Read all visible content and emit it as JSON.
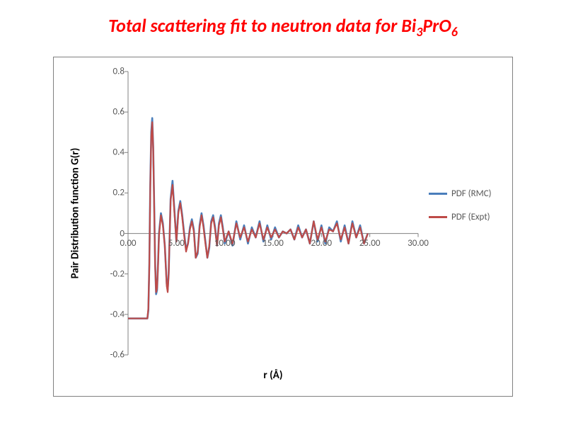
{
  "title_parts": {
    "p1": "Total scattering fit to neutron data for Bi",
    "sub1": "3",
    "p2": "PrO",
    "sub2": "6"
  },
  "chart": {
    "type": "line",
    "x_label": "r (Å)",
    "y_label": "Pair Distribution function G(r)",
    "title_fontsize": 26,
    "label_fontsize": 15,
    "tick_fontsize": 13,
    "title_color": "#ff0000",
    "tick_color": "#595959",
    "background_color": "#ffffff",
    "frame_border_color": "#808080",
    "axis_line_color": "#808080",
    "xlim": [
      0,
      30
    ],
    "ylim": [
      -0.6,
      0.8
    ],
    "x_ticks": [
      "0.00",
      "5.00",
      "10.00",
      "15.00",
      "20.00",
      "25.00",
      "30.00"
    ],
    "x_tick_vals": [
      0,
      5,
      10,
      15,
      20,
      25,
      30
    ],
    "y_ticks": [
      "-0.6",
      "-0.4",
      "-0.2",
      "0",
      "0.2",
      "0.4",
      "0.6",
      "0.8"
    ],
    "y_tick_vals": [
      -0.6,
      -0.4,
      -0.2,
      0,
      0.2,
      0.4,
      0.6,
      0.8
    ],
    "legend": {
      "position": "right-middle",
      "items": [
        {
          "label": "PDF (RMC)",
          "color": "#4a7ebb"
        },
        {
          "label": "PDF (Expt)",
          "color": "#be4b48"
        }
      ]
    },
    "line_width_rmc": 2.6,
    "line_width_expt": 2.2,
    "series": {
      "x": [
        0.0,
        0.5,
        1.0,
        1.5,
        1.8,
        2.0,
        2.1,
        2.2,
        2.3,
        2.4,
        2.5,
        2.6,
        2.7,
        2.8,
        2.9,
        3.0,
        3.1,
        3.2,
        3.4,
        3.6,
        3.8,
        4.0,
        4.1,
        4.2,
        4.4,
        4.6,
        4.8,
        5.0,
        5.2,
        5.4,
        5.6,
        5.8,
        6.0,
        6.2,
        6.4,
        6.6,
        6.8,
        7.0,
        7.2,
        7.4,
        7.6,
        7.8,
        8.0,
        8.2,
        8.4,
        8.6,
        8.8,
        9.0,
        9.2,
        9.4,
        9.6,
        9.8,
        10.0,
        10.4,
        10.8,
        11.2,
        11.6,
        12.0,
        12.4,
        12.8,
        13.2,
        13.6,
        14.0,
        14.4,
        14.8,
        15.2,
        15.6,
        16.0,
        16.4,
        16.8,
        17.2,
        17.6,
        18.0,
        18.4,
        18.8,
        19.2,
        19.6,
        20.0,
        20.4,
        20.8,
        21.2,
        21.6,
        22.0,
        22.4,
        22.8,
        23.2,
        23.6,
        24.0,
        24.4,
        24.8
      ],
      "rmc": [
        -0.42,
        -0.42,
        -0.42,
        -0.42,
        -0.42,
        -0.42,
        -0.38,
        -0.15,
        0.25,
        0.5,
        0.57,
        0.43,
        0.15,
        -0.15,
        -0.3,
        -0.28,
        -0.15,
        0.0,
        0.1,
        0.05,
        -0.06,
        -0.25,
        -0.28,
        -0.2,
        0.17,
        0.26,
        0.11,
        -0.04,
        0.11,
        0.16,
        0.09,
        0.0,
        -0.08,
        -0.05,
        0.03,
        0.07,
        0.02,
        -0.12,
        -0.1,
        0.04,
        0.1,
        0.04,
        -0.04,
        -0.12,
        -0.07,
        0.06,
        0.09,
        0.03,
        -0.06,
        0.05,
        0.09,
        0.03,
        -0.05,
        0.01,
        -0.06,
        0.06,
        -0.03,
        0.04,
        -0.05,
        0.03,
        -0.02,
        0.06,
        -0.04,
        0.04,
        -0.03,
        0.03,
        -0.02,
        0.01,
        0.0,
        0.02,
        -0.03,
        0.04,
        -0.02,
        0.02,
        -0.05,
        0.06,
        -0.04,
        0.04,
        -0.05,
        0.03,
        0.01,
        0.06,
        -0.04,
        0.04,
        -0.05,
        0.06,
        -0.02,
        0.04,
        -0.05,
        0.0
      ],
      "expt": [
        -0.42,
        -0.42,
        -0.42,
        -0.42,
        -0.42,
        -0.42,
        -0.37,
        -0.16,
        0.23,
        0.48,
        0.55,
        0.42,
        0.14,
        -0.16,
        -0.29,
        -0.27,
        -0.16,
        -0.01,
        0.09,
        0.04,
        -0.06,
        -0.26,
        -0.29,
        -0.2,
        0.16,
        0.24,
        0.1,
        -0.04,
        0.1,
        0.15,
        0.08,
        -0.01,
        -0.09,
        -0.05,
        0.02,
        0.06,
        0.01,
        -0.12,
        -0.09,
        0.03,
        0.09,
        0.03,
        -0.05,
        -0.12,
        -0.06,
        0.05,
        0.08,
        0.02,
        -0.06,
        0.04,
        0.08,
        0.02,
        -0.04,
        0.01,
        -0.05,
        0.05,
        -0.02,
        0.03,
        -0.04,
        0.02,
        -0.02,
        0.05,
        -0.03,
        0.03,
        -0.02,
        0.02,
        -0.02,
        0.01,
        0.0,
        0.02,
        -0.03,
        0.03,
        -0.02,
        0.02,
        -0.05,
        0.06,
        -0.03,
        0.03,
        -0.04,
        0.02,
        0.01,
        0.05,
        -0.03,
        0.03,
        -0.05,
        0.05,
        -0.02,
        0.03,
        -0.05,
        0.0
      ]
    }
  }
}
